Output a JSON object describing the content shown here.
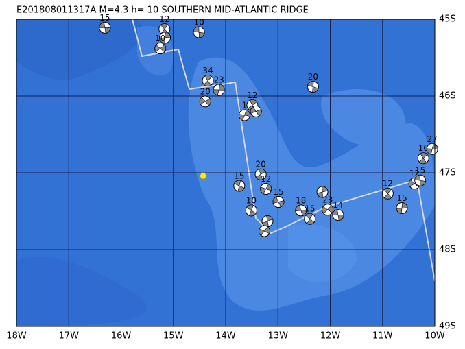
{
  "chart_data": {
    "type": "map",
    "title": "E201808011317A  M=4.3  h= 10  SOUTHERN MID-ATLANTIC RIDGE",
    "xlim": [
      -18,
      -10
    ],
    "ylim": [
      -49,
      -45
    ],
    "xticks": [
      {
        "value": -18,
        "label": "18W"
      },
      {
        "value": -17,
        "label": "17W"
      },
      {
        "value": -16,
        "label": "16W"
      },
      {
        "value": -15,
        "label": "15W"
      },
      {
        "value": -14,
        "label": "14W"
      },
      {
        "value": -13,
        "label": "13W"
      },
      {
        "value": -12,
        "label": "12W"
      },
      {
        "value": -11,
        "label": "11W"
      },
      {
        "value": -10,
        "label": "10W"
      }
    ],
    "yticks": [
      {
        "value": -45,
        "label": "45S"
      },
      {
        "value": -46,
        "label": "46S"
      },
      {
        "value": -47,
        "label": "47S"
      },
      {
        "value": -48,
        "label": "48S"
      },
      {
        "value": -49,
        "label": "49S"
      }
    ],
    "epicenter": {
      "lon": -14.43,
      "lat": -47.04,
      "color": "#ffee00"
    },
    "events": [
      {
        "lon": -16.31,
        "lat": -45.11,
        "label": "15"
      },
      {
        "lon": -15.17,
        "lat": -45.13,
        "label": "12"
      },
      {
        "lon": -15.16,
        "lat": -45.24
      },
      {
        "lon": -15.25,
        "lat": -45.38,
        "label": "10"
      },
      {
        "lon": -14.51,
        "lat": -45.17,
        "label": "10"
      },
      {
        "lon": -14.34,
        "lat": -45.8,
        "label": "34"
      },
      {
        "lon": -14.13,
        "lat": -45.92,
        "label": "23"
      },
      {
        "lon": -14.39,
        "lat": -46.07,
        "label": "20"
      },
      {
        "lon": -12.33,
        "lat": -45.88,
        "label": "20"
      },
      {
        "lon": -13.49,
        "lat": -46.12,
        "label": "12"
      },
      {
        "lon": -13.64,
        "lat": -46.25,
        "label": "1"
      },
      {
        "lon": -13.42,
        "lat": -46.2
      },
      {
        "lon": -13.74,
        "lat": -47.17,
        "label": "15"
      },
      {
        "lon": -13.33,
        "lat": -47.02,
        "label": "20"
      },
      {
        "lon": -13.23,
        "lat": -47.21,
        "label": "12"
      },
      {
        "lon": -12.99,
        "lat": -47.38,
        "label": "15"
      },
      {
        "lon": -13.51,
        "lat": -47.49,
        "label": "10"
      },
      {
        "lon": -13.2,
        "lat": -47.63
      },
      {
        "lon": -13.26,
        "lat": -47.76
      },
      {
        "lon": -12.56,
        "lat": -47.49,
        "label": "18"
      },
      {
        "lon": -12.39,
        "lat": -47.6,
        "label": "15"
      },
      {
        "lon": -12.15,
        "lat": -47.25
      },
      {
        "lon": -12.05,
        "lat": -47.48,
        "label": "23"
      },
      {
        "lon": -11.85,
        "lat": -47.55,
        "label": "14"
      },
      {
        "lon": -10.9,
        "lat": -47.27,
        "label": "12"
      },
      {
        "lon": -10.63,
        "lat": -47.46,
        "label": "15"
      },
      {
        "lon": -10.39,
        "lat": -47.14,
        "label": "12"
      },
      {
        "lon": -10.28,
        "lat": -47.1,
        "label": "15"
      },
      {
        "lon": -10.22,
        "lat": -46.81,
        "label": "16"
      },
      {
        "lon": -10.05,
        "lat": -46.69,
        "label": "27"
      }
    ]
  }
}
